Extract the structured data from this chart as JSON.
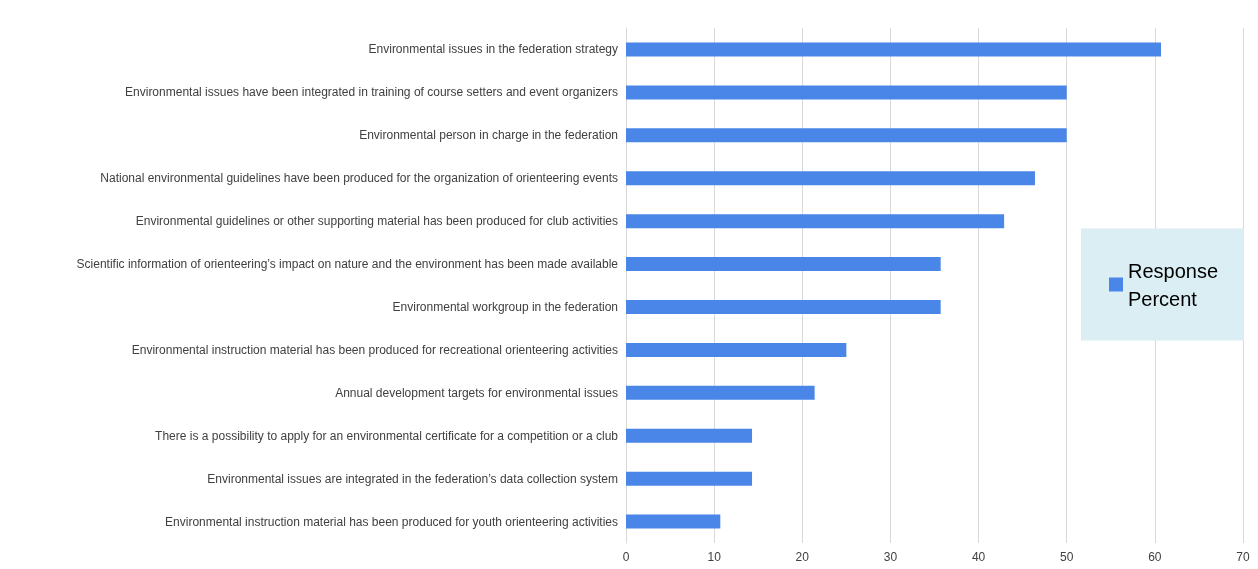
{
  "chart_data": {
    "type": "bar",
    "orientation": "horizontal",
    "categories": [
      "Environmental issues in the federation strategy",
      "Environmental issues have been integrated in training of course setters and event organizers",
      "Environmental person in charge in the federation",
      "National environmental guidelines have been produced for the organization of orienteering events",
      "Environmental guidelines or other supporting material has been produced for club activities",
      "Scientific information of orienteering’s impact on nature and the environment has been made available",
      "Environmental workgroup in the federation",
      "Environmental instruction material has been produced for recreational orienteering activities",
      "Annual development targets for environmental issues",
      "There is a possibility to apply for an environmental certificate for a competition or a club",
      "Environmental issues are integrated in the federation’s data collection system",
      "Environmental instruction material has been produced for youth orienteering activities"
    ],
    "series": [
      {
        "name": "Response Percent",
        "color": "#4a86e8",
        "values": [
          60.7,
          50,
          50,
          46.4,
          42.9,
          35.7,
          35.7,
          25,
          21.4,
          14.3,
          14.3,
          10.7
        ]
      }
    ],
    "xlim": [
      0,
      70
    ],
    "xticks": [
      0,
      10,
      20,
      30,
      40,
      50,
      60,
      70
    ],
    "grid": "x",
    "legend": "right"
  }
}
